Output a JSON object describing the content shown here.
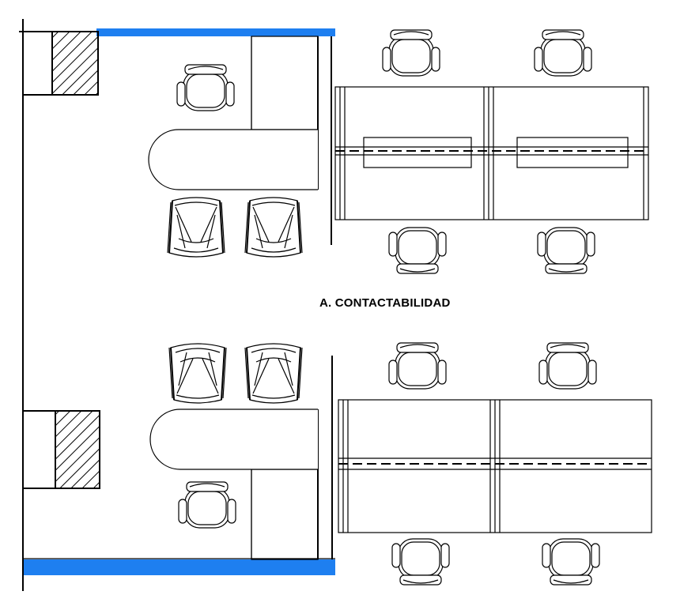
{
  "section_label": "A.  CONTACTABILIDAD",
  "colors": {
    "wall_accent": "#1e7ff0",
    "line": "#000000",
    "background": "#ffffff"
  },
  "icons": [
    "hatched-column-icon",
    "office-chair-icon",
    "visitor-armchair-icon",
    "round-end-desk-icon",
    "workstation-desk-icon"
  ]
}
